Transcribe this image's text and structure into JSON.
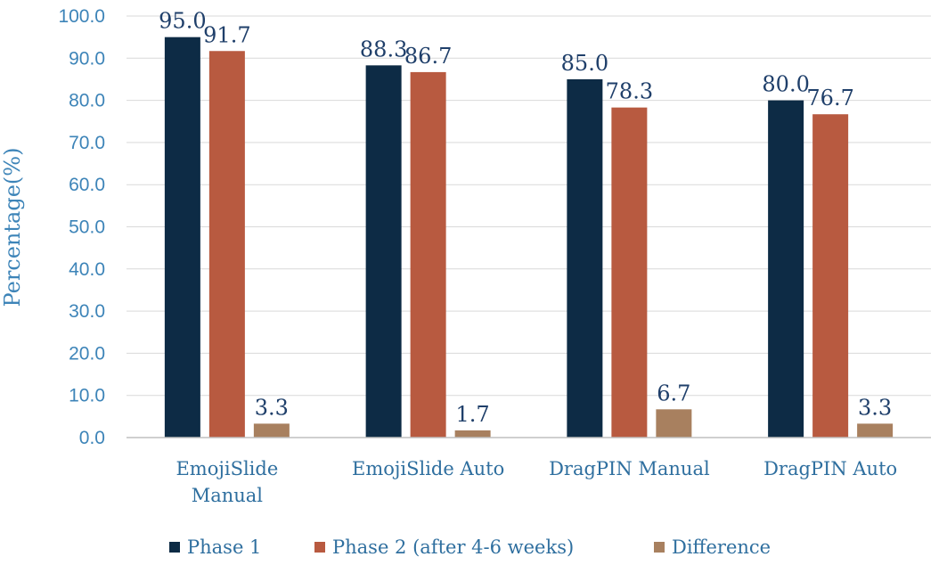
{
  "chart_data": {
    "type": "bar",
    "title": "",
    "xlabel": "",
    "ylabel": "Percentage(%)",
    "ylim": [
      0,
      100
    ],
    "yticks": [
      "0.0",
      "10.0",
      "20.0",
      "30.0",
      "40.0",
      "50.0",
      "60.0",
      "70.0",
      "80.0",
      "90.0",
      "100.0"
    ],
    "grid": "horizontal",
    "legend_position": "bottom",
    "categories": [
      [
        "EmojiSlide",
        "Manual"
      ],
      [
        "EmojiSlide Auto"
      ],
      [
        "DragPIN Manual"
      ],
      [
        "DragPIN Auto"
      ]
    ],
    "series": [
      {
        "name": "Phase 1",
        "color": "#0d2b45",
        "values": [
          95.0,
          88.3,
          85.0,
          80.0
        ],
        "labels": [
          "95.0",
          "88.3",
          "85.0",
          "80.0"
        ]
      },
      {
        "name": "Phase 2 (after 4-6 weeks)",
        "color": "#b85a40",
        "values": [
          91.7,
          86.7,
          78.3,
          76.7
        ],
        "labels": [
          "91.7",
          "86.7",
          "78.3",
          "76.7"
        ]
      },
      {
        "name": "Difference",
        "color": "#a8805f",
        "values": [
          3.3,
          1.7,
          6.7,
          3.3
        ],
        "labels": [
          "3.3",
          "1.7",
          "6.7",
          "3.3"
        ]
      }
    ]
  }
}
